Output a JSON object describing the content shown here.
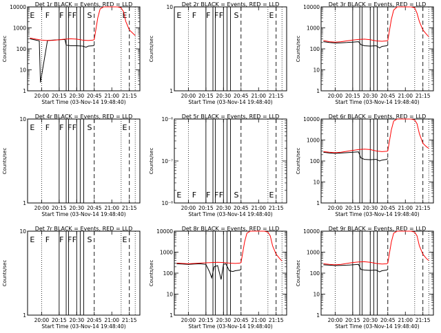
{
  "ylabel": "Counts/sec",
  "xlabel": "Start Time (03-Nov-14 19:48:40)",
  "x_ticks": [
    "20:00",
    "20:15",
    "20:30",
    "20:45",
    "21:00",
    "21:15"
  ],
  "colors": {
    "events": "#000000",
    "lld": "#ff0000",
    "axes": "#000000"
  },
  "chart_data": [
    {
      "type": "line",
      "title": "Det 1r BLACK = Events, RED = LLD",
      "log": true,
      "ylim": [
        1,
        10000
      ],
      "yticks": [
        1,
        10,
        100,
        1000,
        10000
      ],
      "ytick_labels": [
        "1",
        "10",
        "100",
        "1000",
        "10000"
      ],
      "markers": [
        "E",
        "F",
        "F",
        "F",
        "F",
        "S",
        "E"
      ],
      "show_markers": true,
      "series": [
        {
          "key": "events",
          "x": [
            "19:50",
            "19:55",
            "19:58",
            "19:59",
            "20:05",
            "20:10",
            "20:15",
            "20:20",
            "20:21",
            "20:25",
            "20:30",
            "20:35",
            "20:38",
            "20:40",
            "20:44",
            "20:45"
          ],
          "y": [
            300,
            260,
            240,
            2.5,
            250,
            260,
            270,
            280,
            150,
            140,
            140,
            135,
            120,
            135,
            140,
            150
          ]
        },
        {
          "key": "lld",
          "x": [
            "19:50",
            "19:55",
            "20:00",
            "20:05",
            "20:10",
            "20:15",
            "20:20",
            "20:25",
            "20:30",
            "20:35",
            "20:40",
            "20:44",
            "20:45",
            "20:48",
            "20:50",
            "20:53",
            "21:00",
            "21:05",
            "21:08",
            "21:10",
            "21:12",
            "21:15",
            "21:18",
            "21:20"
          ],
          "y": [
            330,
            290,
            260,
            250,
            255,
            270,
            290,
            300,
            290,
            260,
            250,
            260,
            280,
            3000,
            8000,
            10000,
            10000,
            10000,
            9000,
            6000,
            2000,
            800,
            550,
            430
          ]
        }
      ]
    },
    {
      "type": "line",
      "title": "Det 2r BLACK = Events, RED = LLD",
      "log": false,
      "ylim": [
        1,
        10
      ],
      "yticks": [
        1,
        10
      ],
      "ytick_labels": [
        "1",
        "10"
      ],
      "markers": [
        "E",
        "F",
        "F",
        "F",
        "F",
        "S",
        "E"
      ],
      "show_markers": true,
      "series": []
    },
    {
      "type": "line",
      "title": "Det 3r BLACK = Events, RED = LLD",
      "log": true,
      "ylim": [
        1,
        10000
      ],
      "yticks": [
        1,
        10,
        100,
        1000,
        10000
      ],
      "ytick_labels": [
        "1",
        "10",
        "100",
        "1000",
        "10000"
      ],
      "markers": [
        "E",
        "F",
        "F",
        "F",
        "F",
        "S",
        "E"
      ],
      "show_markers": false,
      "series": [
        {
          "key": "events",
          "x": [
            "19:50",
            "19:55",
            "20:00",
            "20:05",
            "20:10",
            "20:15",
            "20:20",
            "20:22",
            "20:25",
            "20:30",
            "20:35",
            "20:38",
            "20:40",
            "20:44",
            "20:45"
          ],
          "y": [
            220,
            200,
            190,
            195,
            200,
            210,
            220,
            160,
            140,
            135,
            140,
            110,
            130,
            140,
            150
          ]
        },
        {
          "key": "lld",
          "x": [
            "19:50",
            "19:55",
            "20:00",
            "20:05",
            "20:10",
            "20:15",
            "20:20",
            "20:25",
            "20:30",
            "20:35",
            "20:40",
            "20:44",
            "20:45",
            "20:48",
            "20:50",
            "20:53",
            "21:00",
            "21:05",
            "21:08",
            "21:10",
            "21:12",
            "21:15",
            "21:18",
            "21:20"
          ],
          "y": [
            250,
            220,
            210,
            220,
            240,
            260,
            280,
            290,
            270,
            240,
            230,
            240,
            250,
            2500,
            7000,
            10000,
            10000,
            10000,
            9000,
            5000,
            2000,
            800,
            500,
            380
          ]
        }
      ]
    },
    {
      "type": "line",
      "title": "Det 4r BLACK = Events, RED = LLD",
      "log": false,
      "ylim": [
        1,
        10
      ],
      "yticks": [
        1,
        10
      ],
      "ytick_labels": [
        "1",
        "10"
      ],
      "markers": [
        "E",
        "F",
        "F",
        "F",
        "F",
        "S",
        "E"
      ],
      "show_markers": true,
      "series": []
    },
    {
      "type": "line",
      "title": "Det 5r BLACK = Events, RED = LLD",
      "log": true,
      "ylim": [
        1e-08,
        1e-06
      ],
      "yticks": [
        1e-08,
        1e-07,
        1e-06
      ],
      "ytick_labels": [
        "10⁻⁸",
        "10⁻⁷",
        "10⁻⁶"
      ],
      "markers": [
        "E",
        "F",
        "F",
        "F",
        "F",
        "S",
        "E"
      ],
      "show_markers": true,
      "series": []
    },
    {
      "type": "line",
      "title": "Det 6r BLACK = Events, RED = LLD",
      "log": true,
      "ylim": [
        1,
        10000
      ],
      "yticks": [
        1,
        10,
        100,
        1000,
        10000
      ],
      "ytick_labels": [
        "1",
        "10",
        "100",
        "1000",
        "10000"
      ],
      "markers": [
        "E",
        "F",
        "F",
        "F",
        "F",
        "S",
        "E"
      ],
      "show_markers": false,
      "series": [
        {
          "key": "events",
          "x": [
            "19:50",
            "19:55",
            "20:00",
            "20:05",
            "20:10",
            "20:15",
            "20:20",
            "20:22",
            "20:25",
            "20:30",
            "20:35",
            "20:38",
            "20:40",
            "20:44",
            "20:45"
          ],
          "y": [
            260,
            240,
            230,
            240,
            250,
            260,
            270,
            140,
            120,
            115,
            120,
            100,
            110,
            120,
            130
          ]
        },
        {
          "key": "lld",
          "x": [
            "19:50",
            "19:55",
            "20:00",
            "20:05",
            "20:10",
            "20:15",
            "20:20",
            "20:25",
            "20:30",
            "20:35",
            "20:40",
            "20:44",
            "20:45",
            "20:48",
            "20:50",
            "20:53",
            "21:00",
            "21:05",
            "21:08",
            "21:10",
            "21:12",
            "21:15",
            "21:18",
            "21:20"
          ],
          "y": [
            280,
            260,
            250,
            260,
            290,
            320,
            350,
            370,
            350,
            300,
            280,
            290,
            300,
            3000,
            8000,
            10000,
            10000,
            10000,
            9000,
            6000,
            2000,
            700,
            480,
            400
          ]
        }
      ]
    },
    {
      "type": "line",
      "title": "Det 7r BLACK = Events, RED = LLD",
      "log": false,
      "ylim": [
        1,
        10
      ],
      "yticks": [
        1,
        10
      ],
      "ytick_labels": [
        "1",
        "10"
      ],
      "markers": [
        "E",
        "F",
        "F",
        "F",
        "F",
        "S",
        "E"
      ],
      "show_markers": true,
      "series": []
    },
    {
      "type": "line",
      "title": "Det 8r BLACK = Events, RED = LLD",
      "log": true,
      "ylim": [
        1,
        10000
      ],
      "yticks": [
        1,
        10,
        100,
        1000,
        10000
      ],
      "ytick_labels": [
        "1",
        "10",
        "100",
        "1000",
        "10000"
      ],
      "markers": [
        "E",
        "F",
        "F",
        "F",
        "F",
        "S",
        "E"
      ],
      "show_markers": false,
      "series": [
        {
          "key": "events",
          "x": [
            "19:50",
            "19:55",
            "20:00",
            "20:05",
            "20:10",
            "20:15",
            "20:18",
            "20:20",
            "20:22",
            "20:25",
            "20:28",
            "20:30",
            "20:32",
            "20:35",
            "20:38",
            "20:40",
            "20:44",
            "20:45"
          ],
          "y": [
            280,
            270,
            260,
            270,
            280,
            260,
            120,
            60,
            200,
            230,
            50,
            260,
            280,
            130,
            120,
            130,
            140,
            150
          ]
        },
        {
          "key": "lld",
          "x": [
            "19:50",
            "19:55",
            "20:00",
            "20:05",
            "20:10",
            "20:15",
            "20:20",
            "20:25",
            "20:30",
            "20:35",
            "20:40",
            "20:44",
            "20:45",
            "20:48",
            "20:50",
            "20:53",
            "21:00",
            "21:05",
            "21:08",
            "21:10",
            "21:12",
            "21:15",
            "21:18",
            "21:20"
          ],
          "y": [
            300,
            290,
            280,
            290,
            300,
            310,
            320,
            330,
            320,
            300,
            290,
            300,
            320,
            3000,
            8000,
            10000,
            10000,
            10000,
            9000,
            6000,
            2000,
            800,
            500,
            380
          ]
        }
      ]
    },
    {
      "type": "line",
      "title": "Det 9r BLACK = Events, RED = LLD",
      "log": true,
      "ylim": [
        1,
        10000
      ],
      "yticks": [
        1,
        10,
        100,
        1000,
        10000
      ],
      "ytick_labels": [
        "1",
        "10",
        "100",
        "1000",
        "10000"
      ],
      "markers": [
        "E",
        "F",
        "F",
        "F",
        "F",
        "S",
        "E"
      ],
      "show_markers": false,
      "series": [
        {
          "key": "events",
          "x": [
            "19:50",
            "19:55",
            "20:00",
            "20:05",
            "20:10",
            "20:15",
            "20:20",
            "20:22",
            "20:25",
            "20:30",
            "20:35",
            "20:38",
            "20:40",
            "20:44",
            "20:45"
          ],
          "y": [
            250,
            240,
            230,
            235,
            240,
            250,
            260,
            150,
            140,
            135,
            140,
            115,
            130,
            140,
            150
          ]
        },
        {
          "key": "lld",
          "x": [
            "19:50",
            "19:55",
            "20:00",
            "20:05",
            "20:10",
            "20:15",
            "20:20",
            "20:25",
            "20:30",
            "20:35",
            "20:40",
            "20:44",
            "20:45",
            "20:48",
            "20:50",
            "20:53",
            "21:00",
            "21:05",
            "21:08",
            "21:10",
            "21:12",
            "21:15",
            "21:18",
            "21:20"
          ],
          "y": [
            280,
            260,
            250,
            260,
            290,
            320,
            340,
            350,
            330,
            290,
            270,
            280,
            300,
            3000,
            8000,
            10000,
            10000,
            10000,
            9000,
            6000,
            2000,
            800,
            500,
            400
          ]
        }
      ]
    }
  ],
  "dotted_lines": [
    "20:00",
    "21:08",
    "21:20"
  ],
  "solid_lines": [
    "20:15",
    "20:21",
    "20:23",
    "20:30",
    "20:33",
    "20:36"
  ],
  "dashed_lines": [
    "20:45",
    "21:15"
  ]
}
